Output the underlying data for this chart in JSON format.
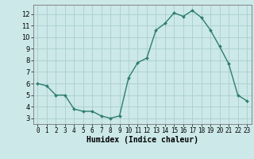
{
  "x": [
    0,
    1,
    2,
    3,
    4,
    5,
    6,
    7,
    8,
    9,
    10,
    11,
    12,
    13,
    14,
    15,
    16,
    17,
    18,
    19,
    20,
    21,
    22,
    23
  ],
  "y": [
    6.0,
    5.8,
    5.0,
    5.0,
    3.8,
    3.6,
    3.6,
    3.2,
    3.0,
    3.2,
    6.5,
    7.8,
    8.2,
    10.6,
    11.2,
    12.1,
    11.8,
    12.3,
    11.7,
    10.6,
    9.2,
    7.7,
    5.0,
    4.5
  ],
  "line_color": "#2e7d6e",
  "marker": "D",
  "marker_size": 2.0,
  "line_width": 1.0,
  "bg_color": "#cce8e8",
  "grid_color": "#aacece",
  "xlabel": "Humidex (Indice chaleur)",
  "xlabel_fontsize": 7,
  "tick_fontsize": 6,
  "xlim": [
    -0.5,
    23.5
  ],
  "ylim": [
    2.5,
    12.8
  ],
  "yticks": [
    3,
    4,
    5,
    6,
    7,
    8,
    9,
    10,
    11,
    12
  ],
  "xticks": [
    0,
    1,
    2,
    3,
    4,
    5,
    6,
    7,
    8,
    9,
    10,
    11,
    12,
    13,
    14,
    15,
    16,
    17,
    18,
    19,
    20,
    21,
    22,
    23
  ]
}
